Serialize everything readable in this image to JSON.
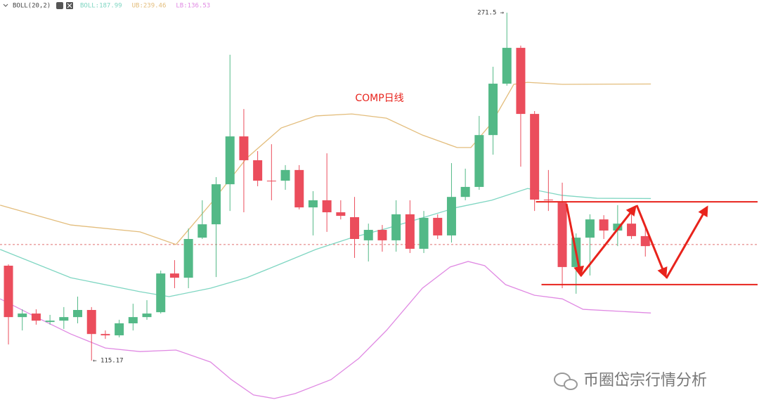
{
  "chart_data": {
    "type": "candlestick",
    "title": "COMP日线",
    "indicator": "BOLL(20,2)",
    "watermark": "币圈岱宗行情分析",
    "up_color": "#53b987",
    "down_color": "#eb4d5c",
    "open": [
      157.8,
      134.7,
      136.3,
      132.5,
      133.1,
      134.7,
      137.9,
      127.1,
      126.5,
      131.9,
      134.7,
      136.9,
      154.3,
      152.4,
      170.4,
      176.4,
      194.4,
      215.9,
      205.2,
      196.0,
      196.0,
      200.8,
      184.0,
      187.2,
      181.8,
      179.6,
      169.2,
      173.9,
      169.2,
      180.9,
      165.4,
      179.3,
      171.4,
      188.7,
      193.2,
      216.5,
      239.6,
      255.7,
      226.0,
      187.5,
      186.2,
      157.2,
      170.4,
      178.6,
      173.6,
      176.7,
      171.1
    ],
    "high": [
      158.4,
      138.2,
      138.2,
      135.7,
      139.2,
      143.9,
      139.2,
      128.7,
      133.5,
      140.7,
      142.3,
      155.6,
      160.3,
      174.5,
      187.2,
      197.6,
      252.6,
      228.2,
      209.3,
      212.4,
      203.0,
      203.0,
      191.3,
      208.3,
      187.2,
      188.7,
      176.7,
      176.1,
      187.2,
      187.2,
      182.4,
      180.9,
      203.9,
      201.4,
      225.1,
      247.2,
      271.5,
      256.7,
      227.3,
      200.8,
      195.1,
      172.3,
      180.9,
      180.5,
      185.0,
      182.4,
      174.8
    ],
    "low": [
      122.4,
      128.7,
      131.3,
      131.3,
      129.4,
      131.9,
      115.17,
      124.9,
      125.6,
      128.7,
      133.5,
      136.3,
      147.7,
      147.7,
      169.8,
      152.7,
      182.4,
      181.8,
      193.5,
      187.2,
      191.9,
      183.1,
      171.4,
      173.0,
      178.6,
      161.3,
      159.7,
      164.1,
      164.1,
      163.5,
      163.5,
      169.8,
      168.2,
      187.2,
      191.9,
      207.7,
      238.7,
      202.3,
      182.4,
      182.4,
      147.7,
      145.2,
      153.4,
      169.8,
      166.6,
      169.8,
      161.9
    ],
    "close": [
      134.7,
      136.3,
      133.1,
      133.1,
      134.7,
      137.9,
      127.1,
      126.5,
      131.9,
      134.7,
      136.3,
      154.3,
      152.4,
      169.8,
      176.4,
      194.4,
      215.9,
      205.2,
      196.0,
      195.7,
      200.8,
      184.0,
      187.2,
      181.8,
      180.2,
      169.8,
      173.9,
      169.2,
      180.9,
      165.4,
      179.3,
      171.4,
      188.7,
      193.2,
      216.5,
      239.6,
      255.7,
      226.0,
      187.5,
      187.2,
      157.2,
      170.4,
      178.6,
      173.6,
      176.7,
      171.1,
      166.6
    ],
    "series": [
      {
        "name": "BOLL:187.99",
        "color": "#7fd6c2",
        "x": [
          -0.6,
          4.5,
          9.5,
          11.6,
          14.6,
          17.2,
          19.7,
          22.2,
          24.8,
          27.3,
          29.9,
          32.4,
          34.9,
          37.5,
          40,
          42.5,
          46.4
        ],
        "values": [
          165.1,
          152.4,
          146.1,
          143.9,
          147.7,
          152.4,
          158.7,
          165.1,
          170.4,
          174.5,
          179.3,
          184.0,
          187.2,
          192.5,
          189.4,
          188.1,
          187.99
        ]
      },
      {
        "name": "UB:239.46",
        "color": "#e3bd7c",
        "x": [
          -0.6,
          4.5,
          9.5,
          12.1,
          14.6,
          17.2,
          19.7,
          22.2,
          24.8,
          27.3,
          29.9,
          32.4,
          33.4,
          34.9,
          36.5,
          37.5,
          40,
          46.4
        ],
        "values": [
          185.0,
          176.1,
          173.0,
          167.3,
          185.6,
          206.1,
          219.7,
          225.1,
          226.0,
          224.1,
          216.5,
          210.9,
          210.9,
          221.9,
          239.3,
          240.2,
          239.3,
          239.46
        ]
      },
      {
        "name": "LB:136.53",
        "color": "#e08ae3",
        "x": [
          -0.6,
          1.9,
          4.5,
          7,
          9.5,
          12.1,
          14.6,
          16.1,
          17.7,
          19.2,
          20.7,
          23.3,
          25.3,
          27.3,
          29.9,
          31.9,
          33.2,
          34.4,
          35.9,
          38,
          40,
          41.5,
          46.4
        ],
        "values": [
          142.9,
          135.0,
          127.1,
          120.8,
          119.2,
          119.9,
          114.5,
          106.6,
          99.7,
          98.1,
          100.3,
          106.6,
          116.1,
          128.7,
          147.7,
          157.2,
          159.7,
          157.8,
          149.3,
          144.5,
          142.9,
          138.2,
          136.53
        ]
      }
    ],
    "high_label": {
      "value": 271.5,
      "label": "271.5 →"
    },
    "low_label": {
      "value": 115.17,
      "label": "← 115.17"
    },
    "price_line": 167.3,
    "levels": [
      {
        "value": 186.5,
        "from": 38.1
      },
      {
        "value": 149.3,
        "from": 38.5
      }
    ],
    "xlim": [
      -0.61,
      54.21
    ],
    "ylim": [
      91.15,
      277.2
    ]
  }
}
